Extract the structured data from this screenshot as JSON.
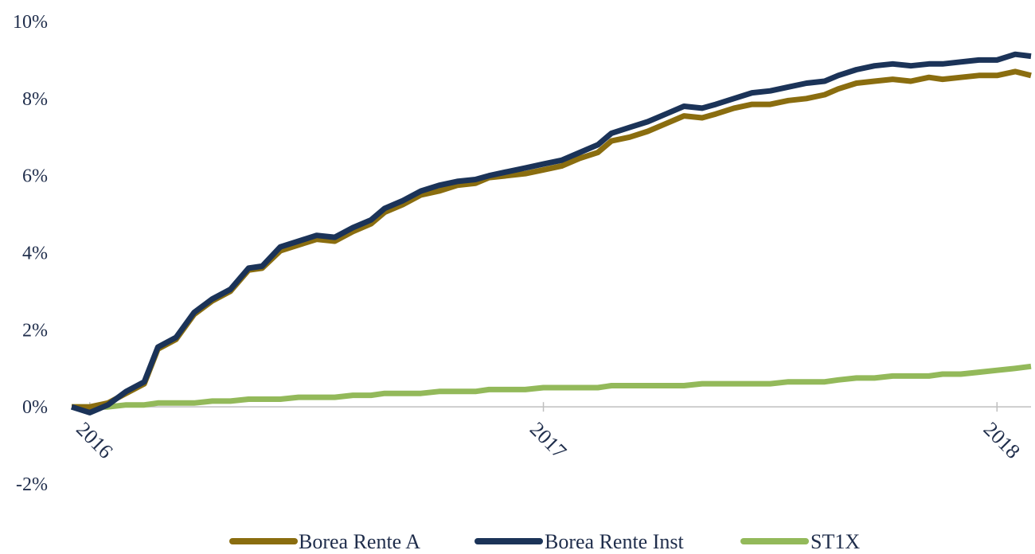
{
  "chart_data": {
    "type": "line",
    "title": "",
    "xlabel": "",
    "ylabel": "",
    "y_unit": "%",
    "ylim": [
      -2,
      10
    ],
    "y_ticks": [
      "10%",
      "8%",
      "6%",
      "4%",
      "2%",
      "0%",
      "-2%"
    ],
    "y_tick_values": [
      10,
      8,
      6,
      4,
      2,
      0,
      -2
    ],
    "x_ticks": [
      "2016",
      "2017",
      "2018"
    ],
    "x_tick_values": [
      2016.0,
      2017.0,
      2018.0
    ],
    "xlim": [
      2015.96,
      2018.075
    ],
    "legend_position": "bottom",
    "series": [
      {
        "name": "Borea Rente A",
        "color": "#8a6d0f",
        "x": [
          2015.96,
          2016.0,
          2016.04,
          2016.08,
          2016.12,
          2016.15,
          2016.19,
          2016.23,
          2016.27,
          2016.31,
          2016.35,
          2016.38,
          2016.42,
          2016.46,
          2016.5,
          2016.54,
          2016.58,
          2016.62,
          2016.65,
          2016.69,
          2016.73,
          2016.77,
          2016.81,
          2016.85,
          2016.88,
          2016.92,
          2016.96,
          2017.0,
          2017.04,
          2017.08,
          2017.12,
          2017.15,
          2017.19,
          2017.23,
          2017.27,
          2017.31,
          2017.35,
          2017.38,
          2017.42,
          2017.46,
          2017.5,
          2017.54,
          2017.58,
          2017.62,
          2017.65,
          2017.69,
          2017.73,
          2017.77,
          2017.81,
          2017.85,
          2017.88,
          2017.92,
          2017.96,
          2018.0,
          2018.04,
          2018.075
        ],
        "values": [
          0.0,
          0.0,
          0.1,
          0.35,
          0.6,
          1.5,
          1.75,
          2.4,
          2.75,
          3.0,
          3.55,
          3.6,
          4.05,
          4.2,
          4.35,
          4.3,
          4.55,
          4.75,
          5.05,
          5.25,
          5.5,
          5.6,
          5.75,
          5.8,
          5.95,
          6.0,
          6.05,
          6.15,
          6.25,
          6.45,
          6.6,
          6.9,
          7.0,
          7.15,
          7.35,
          7.55,
          7.5,
          7.6,
          7.75,
          7.85,
          7.85,
          7.95,
          8.0,
          8.1,
          8.25,
          8.4,
          8.45,
          8.5,
          8.45,
          8.55,
          8.5,
          8.55,
          8.6,
          8.6,
          8.7,
          8.6
        ]
      },
      {
        "name": "Borea Rente Inst",
        "color": "#1b3358",
        "x": [
          2015.96,
          2016.0,
          2016.04,
          2016.08,
          2016.12,
          2016.15,
          2016.19,
          2016.23,
          2016.27,
          2016.31,
          2016.35,
          2016.38,
          2016.42,
          2016.46,
          2016.5,
          2016.54,
          2016.58,
          2016.62,
          2016.65,
          2016.69,
          2016.73,
          2016.77,
          2016.81,
          2016.85,
          2016.88,
          2016.92,
          2016.96,
          2017.0,
          2017.04,
          2017.08,
          2017.12,
          2017.15,
          2017.19,
          2017.23,
          2017.27,
          2017.31,
          2017.35,
          2017.38,
          2017.42,
          2017.46,
          2017.5,
          2017.54,
          2017.58,
          2017.62,
          2017.65,
          2017.69,
          2017.73,
          2017.77,
          2017.81,
          2017.85,
          2017.88,
          2017.92,
          2017.96,
          2018.0,
          2018.04,
          2018.075
        ],
        "values": [
          0.0,
          -0.15,
          0.05,
          0.4,
          0.65,
          1.55,
          1.8,
          2.45,
          2.8,
          3.05,
          3.6,
          3.65,
          4.15,
          4.3,
          4.45,
          4.4,
          4.65,
          4.85,
          5.15,
          5.35,
          5.6,
          5.75,
          5.85,
          5.9,
          6.0,
          6.1,
          6.2,
          6.3,
          6.4,
          6.6,
          6.8,
          7.1,
          7.25,
          7.4,
          7.6,
          7.8,
          7.75,
          7.85,
          8.0,
          8.15,
          8.2,
          8.3,
          8.4,
          8.45,
          8.6,
          8.75,
          8.85,
          8.9,
          8.85,
          8.9,
          8.9,
          8.95,
          9.0,
          9.0,
          9.15,
          9.1
        ]
      },
      {
        "name": "ST1X",
        "color": "#93b95a",
        "x": [
          2015.96,
          2016.0,
          2016.04,
          2016.08,
          2016.12,
          2016.15,
          2016.19,
          2016.23,
          2016.27,
          2016.31,
          2016.35,
          2016.38,
          2016.42,
          2016.46,
          2016.5,
          2016.54,
          2016.58,
          2016.62,
          2016.65,
          2016.69,
          2016.73,
          2016.77,
          2016.81,
          2016.85,
          2016.88,
          2016.92,
          2016.96,
          2017.0,
          2017.04,
          2017.08,
          2017.12,
          2017.15,
          2017.19,
          2017.23,
          2017.27,
          2017.31,
          2017.35,
          2017.38,
          2017.42,
          2017.46,
          2017.5,
          2017.54,
          2017.58,
          2017.62,
          2017.65,
          2017.69,
          2017.73,
          2017.77,
          2017.81,
          2017.85,
          2017.88,
          2017.92,
          2017.96,
          2018.0,
          2018.04,
          2018.075
        ],
        "values": [
          0.0,
          0.0,
          0.0,
          0.05,
          0.05,
          0.1,
          0.1,
          0.1,
          0.15,
          0.15,
          0.2,
          0.2,
          0.2,
          0.25,
          0.25,
          0.25,
          0.3,
          0.3,
          0.35,
          0.35,
          0.35,
          0.4,
          0.4,
          0.4,
          0.45,
          0.45,
          0.45,
          0.5,
          0.5,
          0.5,
          0.5,
          0.55,
          0.55,
          0.55,
          0.55,
          0.55,
          0.6,
          0.6,
          0.6,
          0.6,
          0.6,
          0.65,
          0.65,
          0.65,
          0.7,
          0.75,
          0.75,
          0.8,
          0.8,
          0.8,
          0.85,
          0.85,
          0.9,
          0.95,
          1.0,
          1.05
        ]
      }
    ]
  }
}
